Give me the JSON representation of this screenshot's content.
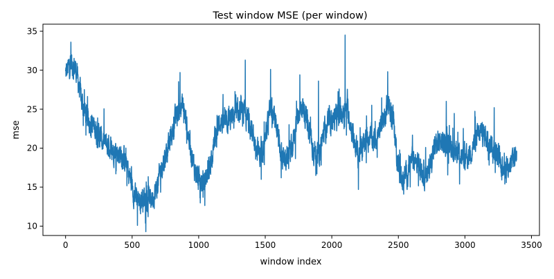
{
  "chart_data": {
    "type": "line",
    "title": "Test window MSE (per window)",
    "xlabel": "window index",
    "ylabel": "mse",
    "xlim": [
      -170,
      3560
    ],
    "ylim": [
      8.8,
      35.9
    ],
    "xticks": [
      0,
      500,
      1000,
      1500,
      2000,
      2500,
      3000,
      3500
    ],
    "yticks": [
      10,
      15,
      20,
      25,
      30,
      35
    ],
    "grid": false,
    "legend": "none",
    "line_color": "#1f77b4",
    "n_points": 3390,
    "trend": [
      {
        "x": 0,
        "y": 29.5
      },
      {
        "x": 40,
        "y": 31.0
      },
      {
        "x": 80,
        "y": 30.0
      },
      {
        "x": 120,
        "y": 26.0
      },
      {
        "x": 160,
        "y": 24.0
      },
      {
        "x": 220,
        "y": 22.5
      },
      {
        "x": 280,
        "y": 20.8
      },
      {
        "x": 340,
        "y": 20.0
      },
      {
        "x": 400,
        "y": 19.5
      },
      {
        "x": 450,
        "y": 18.5
      },
      {
        "x": 480,
        "y": 16.5
      },
      {
        "x": 520,
        "y": 13.8
      },
      {
        "x": 560,
        "y": 13.5
      },
      {
        "x": 600,
        "y": 13.8
      },
      {
        "x": 640,
        "y": 13.5
      },
      {
        "x": 680,
        "y": 14.5
      },
      {
        "x": 720,
        "y": 17.5
      },
      {
        "x": 760,
        "y": 19.5
      },
      {
        "x": 800,
        "y": 22.0
      },
      {
        "x": 840,
        "y": 24.5
      },
      {
        "x": 880,
        "y": 25.5
      },
      {
        "x": 920,
        "y": 22.0
      },
      {
        "x": 960,
        "y": 18.0
      },
      {
        "x": 1000,
        "y": 15.8
      },
      {
        "x": 1040,
        "y": 15.5
      },
      {
        "x": 1080,
        "y": 17.5
      },
      {
        "x": 1120,
        "y": 21.0
      },
      {
        "x": 1160,
        "y": 23.5
      },
      {
        "x": 1200,
        "y": 23.0
      },
      {
        "x": 1260,
        "y": 24.0
      },
      {
        "x": 1320,
        "y": 24.5
      },
      {
        "x": 1380,
        "y": 23.5
      },
      {
        "x": 1420,
        "y": 21.0
      },
      {
        "x": 1460,
        "y": 19.0
      },
      {
        "x": 1500,
        "y": 21.5
      },
      {
        "x": 1540,
        "y": 25.0
      },
      {
        "x": 1580,
        "y": 23.0
      },
      {
        "x": 1620,
        "y": 19.0
      },
      {
        "x": 1660,
        "y": 18.5
      },
      {
        "x": 1700,
        "y": 20.0
      },
      {
        "x": 1740,
        "y": 24.0
      },
      {
        "x": 1780,
        "y": 25.5
      },
      {
        "x": 1820,
        "y": 23.0
      },
      {
        "x": 1860,
        "y": 20.0
      },
      {
        "x": 1900,
        "y": 19.0
      },
      {
        "x": 1940,
        "y": 22.0
      },
      {
        "x": 1980,
        "y": 23.5
      },
      {
        "x": 2040,
        "y": 24.0
      },
      {
        "x": 2080,
        "y": 24.5
      },
      {
        "x": 2120,
        "y": 25.0
      },
      {
        "x": 2160,
        "y": 21.5
      },
      {
        "x": 2200,
        "y": 19.0
      },
      {
        "x": 2240,
        "y": 20.5
      },
      {
        "x": 2280,
        "y": 21.5
      },
      {
        "x": 2320,
        "y": 21.0
      },
      {
        "x": 2360,
        "y": 22.0
      },
      {
        "x": 2420,
        "y": 25.5
      },
      {
        "x": 2460,
        "y": 24.0
      },
      {
        "x": 2490,
        "y": 19.0
      },
      {
        "x": 2520,
        "y": 16.0
      },
      {
        "x": 2560,
        "y": 16.5
      },
      {
        "x": 2600,
        "y": 18.5
      },
      {
        "x": 2640,
        "y": 18.5
      },
      {
        "x": 2680,
        "y": 17.0
      },
      {
        "x": 2720,
        "y": 16.5
      },
      {
        "x": 2760,
        "y": 19.5
      },
      {
        "x": 2800,
        "y": 21.0
      },
      {
        "x": 2840,
        "y": 20.5
      },
      {
        "x": 2880,
        "y": 20.5
      },
      {
        "x": 2920,
        "y": 20.0
      },
      {
        "x": 2960,
        "y": 19.5
      },
      {
        "x": 3000,
        "y": 18.0
      },
      {
        "x": 3040,
        "y": 19.5
      },
      {
        "x": 3080,
        "y": 21.0
      },
      {
        "x": 3120,
        "y": 22.0
      },
      {
        "x": 3160,
        "y": 21.5
      },
      {
        "x": 3200,
        "y": 20.5
      },
      {
        "x": 3240,
        "y": 19.0
      },
      {
        "x": 3280,
        "y": 18.0
      },
      {
        "x": 3320,
        "y": 17.5
      },
      {
        "x": 3360,
        "y": 18.5
      },
      {
        "x": 3390,
        "y": 19.5
      }
    ],
    "peaks": [
      {
        "x": 40,
        "y": 33.6
      },
      {
        "x": 2100,
        "y": 34.5
      },
      {
        "x": 1350,
        "y": 31.3
      },
      {
        "x": 1540,
        "y": 30.1
      },
      {
        "x": 2420,
        "y": 29.8
      },
      {
        "x": 860,
        "y": 29.7
      },
      {
        "x": 1760,
        "y": 29.4
      },
      {
        "x": 1900,
        "y": 28.6
      },
      {
        "x": 2860,
        "y": 26.0
      },
      {
        "x": 3220,
        "y": 25.2
      },
      {
        "x": 2300,
        "y": 25.5
      },
      {
        "x": 3130,
        "y": 23.3
      }
    ],
    "troughs": [
      {
        "x": 540,
        "y": 10.1
      },
      {
        "x": 620,
        "y": 11.2
      },
      {
        "x": 1010,
        "y": 13.6
      },
      {
        "x": 2540,
        "y": 14.1
      },
      {
        "x": 2200,
        "y": 14.7
      },
      {
        "x": 1470,
        "y": 16.0
      },
      {
        "x": 1620,
        "y": 16.2
      },
      {
        "x": 2720,
        "y": 15.8
      },
      {
        "x": 3300,
        "y": 15.4
      },
      {
        "x": 2960,
        "y": 15.4
      },
      {
        "x": 1880,
        "y": 16.5
      }
    ]
  }
}
